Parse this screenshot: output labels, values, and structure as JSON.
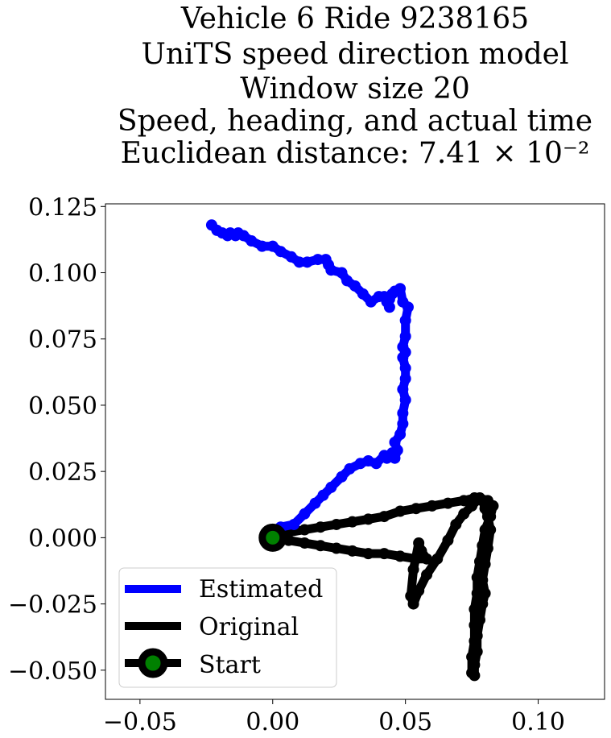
{
  "chart_data": {
    "type": "line",
    "title_lines": [
      "Vehicle 6 Ride 9238165",
      "UniTS speed direction model",
      "Window size 20",
      "Speed, heading, and actual time",
      "Euclidean distance: 7.41 × 10⁻²"
    ],
    "xlim": [
      -0.063,
      0.125
    ],
    "ylim": [
      -0.061,
      0.126
    ],
    "x_ticks": [
      -0.05,
      0.0,
      0.05,
      0.1
    ],
    "x_tick_labels": [
      "−0.05",
      "0.00",
      "0.05",
      "0.10"
    ],
    "y_ticks": [
      0.125,
      0.1,
      0.075,
      0.05,
      0.025,
      0.0,
      -0.025,
      -0.05
    ],
    "y_tick_labels": [
      "0.125",
      "0.100",
      "0.075",
      "0.050",
      "0.025",
      "0.000",
      "−0.025",
      "−0.050"
    ],
    "grid": false,
    "legend_position": "lower-left",
    "series": [
      {
        "name": "Estimated",
        "color": "#0000ff",
        "x": [
          0.0,
          0.003,
          0.008,
          0.012,
          0.016,
          0.019,
          0.022,
          0.026,
          0.029,
          0.033,
          0.036,
          0.039,
          0.042,
          0.043,
          0.045,
          0.046,
          0.047,
          0.046,
          0.048,
          0.049,
          0.049,
          0.05,
          0.049,
          0.05,
          0.05,
          0.049,
          0.05,
          0.049,
          0.05,
          0.05,
          0.051,
          0.049,
          0.048,
          0.046,
          0.045,
          0.044,
          0.043,
          0.044,
          0.042,
          0.04,
          0.037,
          0.034,
          0.031,
          0.028,
          0.026,
          0.022,
          0.021,
          0.02,
          0.017,
          0.013,
          0.01,
          0.007,
          0.003,
          0.0,
          -0.004,
          -0.008,
          -0.011,
          -0.013,
          -0.014,
          -0.016,
          -0.017,
          -0.019,
          -0.021,
          -0.023
        ],
        "y": [
          0.001,
          0.004,
          0.005,
          0.009,
          0.013,
          0.016,
          0.019,
          0.023,
          0.026,
          0.028,
          0.029,
          0.028,
          0.031,
          0.03,
          0.032,
          0.03,
          0.033,
          0.036,
          0.039,
          0.043,
          0.047,
          0.052,
          0.056,
          0.06,
          0.064,
          0.068,
          0.07,
          0.072,
          0.076,
          0.082,
          0.087,
          0.089,
          0.094,
          0.093,
          0.092,
          0.09,
          0.089,
          0.087,
          0.091,
          0.091,
          0.089,
          0.092,
          0.095,
          0.097,
          0.1,
          0.101,
          0.103,
          0.105,
          0.105,
          0.104,
          0.104,
          0.106,
          0.108,
          0.11,
          0.11,
          0.112,
          0.114,
          0.115,
          0.114,
          0.115,
          0.114,
          0.115,
          0.116,
          0.118
        ]
      },
      {
        "name": "Original",
        "color": "#000000",
        "x": [
          0.0,
          0.006,
          0.012,
          0.018,
          0.024,
          0.03,
          0.036,
          0.042,
          0.048,
          0.054,
          0.058,
          0.056,
          0.055,
          0.053,
          0.052,
          0.053,
          0.055,
          0.058,
          0.062,
          0.066,
          0.069,
          0.072,
          0.075,
          0.078,
          0.081,
          0.083,
          0.082,
          0.08,
          0.079,
          0.078,
          0.077,
          0.077,
          0.076,
          0.076,
          0.076,
          0.075,
          0.075,
          0.076,
          0.076,
          0.077,
          0.077,
          0.078,
          0.079,
          0.08,
          0.079,
          0.08,
          0.081,
          0.082,
          0.081,
          0.08,
          0.079,
          0.076,
          0.072,
          0.066,
          0.06,
          0.054,
          0.048,
          0.042,
          0.036,
          0.03,
          0.024,
          0.018,
          0.012,
          0.006,
          0.0
        ],
        "y": [
          0.0,
          -0.001,
          -0.002,
          -0.003,
          -0.004,
          -0.005,
          -0.006,
          -0.006,
          -0.007,
          -0.008,
          -0.008,
          -0.005,
          -0.002,
          -0.012,
          -0.022,
          -0.025,
          -0.02,
          -0.014,
          -0.008,
          -0.001,
          0.005,
          0.009,
          0.012,
          0.015,
          0.014,
          0.012,
          0.008,
          0.003,
          -0.003,
          -0.009,
          -0.015,
          -0.021,
          -0.027,
          -0.033,
          -0.039,
          -0.045,
          -0.051,
          -0.052,
          -0.048,
          -0.043,
          -0.037,
          -0.031,
          -0.025,
          -0.021,
          -0.016,
          -0.01,
          -0.004,
          0.003,
          0.008,
          0.011,
          0.014,
          0.015,
          0.014,
          0.013,
          0.012,
          0.011,
          0.01,
          0.008,
          0.007,
          0.006,
          0.005,
          0.004,
          0.003,
          0.002,
          0.0
        ]
      },
      {
        "name": "Start",
        "color": "#000000",
        "marker_face": "#008000",
        "x": [
          0.0
        ],
        "y": [
          0.0
        ]
      }
    ]
  }
}
